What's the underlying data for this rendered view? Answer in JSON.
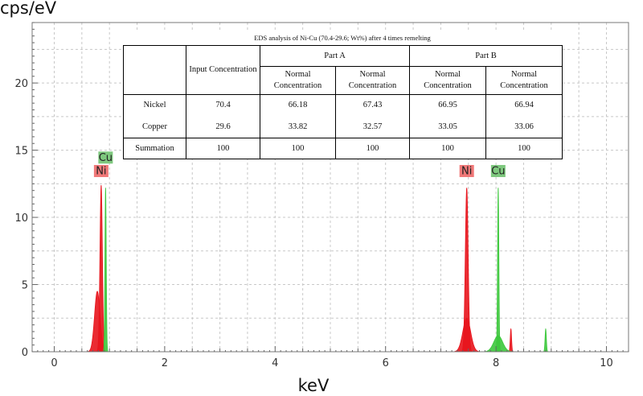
{
  "chart_data": {
    "type": "area",
    "xlabel": "keV",
    "ylabel": "cps/eV",
    "xlim": [
      -0.4,
      10.4
    ],
    "ylim": [
      0,
      24.5
    ],
    "x_ticks": [
      0,
      2,
      4,
      6,
      8,
      10
    ],
    "y_ticks": [
      0,
      5,
      10,
      15,
      20
    ],
    "grid": true,
    "series": [
      {
        "name": "Ni",
        "color": "#e8141c",
        "peaks": [
          {
            "x": 0.78,
            "y": 4.5,
            "width": 0.05
          },
          {
            "x": 0.85,
            "y": 12.4,
            "width": 0.022
          },
          {
            "x": 7.47,
            "y": 12.2,
            "width": 0.026
          },
          {
            "x": 7.47,
            "y": 2.5,
            "width": 0.07
          },
          {
            "x": 8.27,
            "y": 1.7,
            "width": 0.012
          }
        ]
      },
      {
        "name": "Cu",
        "color": "#3cc83c",
        "peaks": [
          {
            "x": 0.93,
            "y": 12.2,
            "width": 0.012
          },
          {
            "x": 8.04,
            "y": 12.2,
            "width": 0.012
          },
          {
            "x": 8.04,
            "y": 1.2,
            "width": 0.08
          },
          {
            "x": 8.9,
            "y": 1.7,
            "width": 0.012
          }
        ]
      }
    ],
    "peak_labels": [
      {
        "text": "Cu",
        "x": 0.93,
        "y": 14.0,
        "color": "#7ec87e"
      },
      {
        "text": "Ni",
        "x": 0.85,
        "y": 13.0,
        "color": "#f07878"
      },
      {
        "text": "Ni",
        "x": 7.47,
        "y": 13.0,
        "color": "#f07878"
      },
      {
        "text": "Cu",
        "x": 8.04,
        "y": 13.0,
        "color": "#7ec87e"
      }
    ]
  },
  "table": {
    "title": "EDS analysis of Ni-Cu (70.4-29.6; Wt%) after 4 times remelting",
    "input_header": "Input Concentration",
    "part_a": "Part A",
    "part_b": "Part B",
    "sub_headers": [
      "Normal Concentration",
      "Normal Concentration",
      "Normal Concentration",
      "Normal Concentration"
    ],
    "rows": [
      {
        "label": "Nickel",
        "values": [
          "70.4",
          "66.18",
          "67.43",
          "66.95",
          "66.94"
        ]
      },
      {
        "label": "Copper",
        "values": [
          "29.6",
          "33.82",
          "32.57",
          "33.05",
          "33.06"
        ]
      },
      {
        "label": "Summation",
        "values": [
          "100",
          "100",
          "100",
          "100",
          "100"
        ]
      }
    ]
  }
}
